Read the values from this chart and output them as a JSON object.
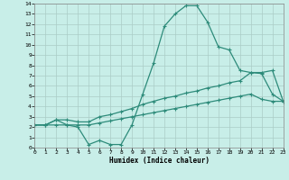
{
  "xlabel": "Humidex (Indice chaleur)",
  "x_values": [
    0,
    1,
    2,
    3,
    4,
    5,
    6,
    7,
    8,
    9,
    10,
    11,
    12,
    13,
    14,
    15,
    16,
    17,
    18,
    19,
    20,
    21,
    22,
    23
  ],
  "line1_y": [
    2.2,
    2.2,
    2.7,
    2.2,
    2.0,
    0.3,
    0.7,
    0.3,
    0.3,
    2.2,
    5.2,
    8.2,
    11.8,
    13.0,
    13.8,
    13.8,
    12.2,
    9.8,
    9.5,
    7.5,
    7.3,
    7.2,
    5.2,
    4.5
  ],
  "line2_y": [
    2.2,
    2.2,
    2.7,
    2.7,
    2.5,
    2.5,
    3.0,
    3.2,
    3.5,
    3.8,
    4.2,
    4.5,
    4.8,
    5.0,
    5.3,
    5.5,
    5.8,
    6.0,
    6.3,
    6.5,
    7.3,
    7.3,
    7.5,
    4.5
  ],
  "line3_y": [
    2.2,
    2.2,
    2.2,
    2.2,
    2.2,
    2.2,
    2.4,
    2.6,
    2.8,
    3.0,
    3.2,
    3.4,
    3.6,
    3.8,
    4.0,
    4.2,
    4.4,
    4.6,
    4.8,
    5.0,
    5.2,
    4.7,
    4.5,
    4.5
  ],
  "line_color": "#2d8b7a",
  "bg_color": "#c8eee8",
  "grid_color": "#aaccc6",
  "xlim": [
    0,
    23
  ],
  "ylim": [
    0,
    14
  ],
  "yticks": [
    0,
    1,
    2,
    3,
    4,
    5,
    6,
    7,
    8,
    9,
    10,
    11,
    12,
    13,
    14
  ],
  "xticks": [
    0,
    1,
    2,
    3,
    4,
    5,
    6,
    7,
    8,
    9,
    10,
    11,
    12,
    13,
    14,
    15,
    16,
    17,
    18,
    19,
    20,
    21,
    22,
    23
  ],
  "marker": "+",
  "markersize": 3,
  "linewidth": 0.9
}
